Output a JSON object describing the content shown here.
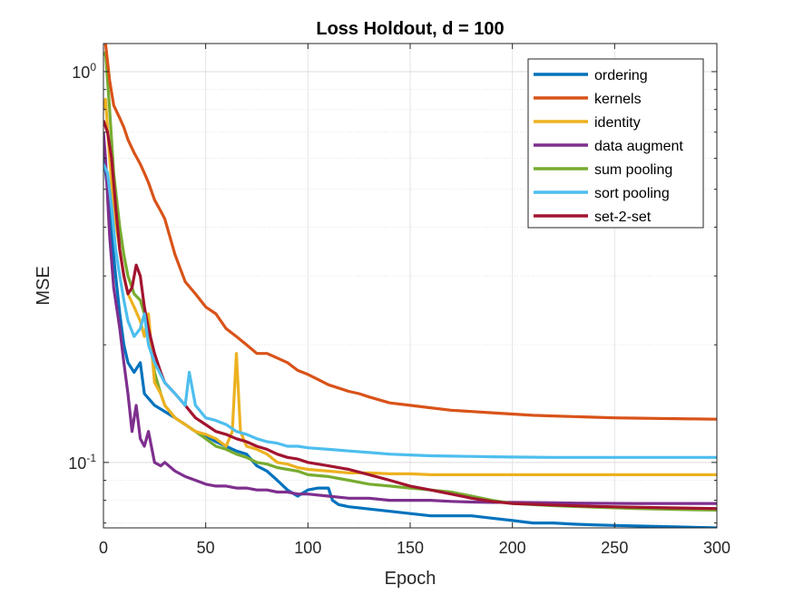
{
  "chart_data": {
    "type": "line",
    "title": "Loss Holdout, d = 100",
    "xlabel": "Epoch",
    "ylabel": "MSE",
    "xlim": [
      0,
      300
    ],
    "ylim": [
      0.068,
      1.18
    ],
    "yscale": "log",
    "grid": true,
    "legend_position": "top-right",
    "x_ticks": [
      {
        "value": 0,
        "label": "0"
      },
      {
        "value": 50,
        "label": "50"
      },
      {
        "value": 100,
        "label": "100"
      },
      {
        "value": 150,
        "label": "150"
      },
      {
        "value": 200,
        "label": "200"
      },
      {
        "value": 250,
        "label": "250"
      },
      {
        "value": 300,
        "label": "300"
      }
    ],
    "y_ticks": [
      {
        "value": 1,
        "base": "10",
        "exp": "0"
      },
      {
        "value": 0.1,
        "base": "10",
        "exp": "-1"
      }
    ],
    "series": [
      {
        "name": "ordering",
        "color": "#0072BD",
        "x": [
          0,
          2,
          4,
          6,
          8,
          10,
          12,
          15,
          18,
          20,
          25,
          30,
          35,
          40,
          45,
          50,
          55,
          60,
          65,
          70,
          75,
          80,
          85,
          90,
          95,
          100,
          105,
          110,
          112,
          115,
          120,
          130,
          140,
          150,
          160,
          170,
          180,
          190,
          200,
          210,
          220,
          230,
          240,
          250,
          260,
          270,
          280,
          290,
          300
        ],
        "y": [
          0.62,
          0.5,
          0.38,
          0.3,
          0.24,
          0.2,
          0.18,
          0.17,
          0.18,
          0.15,
          0.14,
          0.135,
          0.13,
          0.125,
          0.12,
          0.117,
          0.113,
          0.11,
          0.107,
          0.105,
          0.098,
          0.095,
          0.09,
          0.085,
          0.082,
          0.085,
          0.086,
          0.086,
          0.08,
          0.078,
          0.077,
          0.076,
          0.075,
          0.074,
          0.073,
          0.073,
          0.073,
          0.072,
          0.071,
          0.07,
          0.07,
          0.0695,
          0.0692,
          0.069,
          0.0688,
          0.0686,
          0.0684,
          0.0682,
          0.068
        ]
      },
      {
        "name": "kernels",
        "color": "#D95319",
        "x": [
          0,
          1,
          3,
          5,
          8,
          10,
          12,
          15,
          18,
          20,
          22,
          25,
          28,
          30,
          35,
          40,
          45,
          50,
          55,
          60,
          65,
          70,
          75,
          80,
          85,
          90,
          95,
          100,
          105,
          110,
          115,
          120,
          125,
          130,
          140,
          150,
          160,
          170,
          180,
          190,
          200,
          210,
          220,
          230,
          240,
          250,
          260,
          270,
          280,
          290,
          300
        ],
        "y": [
          1.2,
          1.18,
          0.95,
          0.82,
          0.76,
          0.72,
          0.67,
          0.62,
          0.58,
          0.55,
          0.52,
          0.47,
          0.44,
          0.42,
          0.34,
          0.29,
          0.27,
          0.25,
          0.24,
          0.22,
          0.21,
          0.2,
          0.19,
          0.19,
          0.185,
          0.18,
          0.172,
          0.168,
          0.163,
          0.158,
          0.155,
          0.152,
          0.15,
          0.147,
          0.142,
          0.14,
          0.138,
          0.136,
          0.135,
          0.134,
          0.133,
          0.132,
          0.1315,
          0.131,
          0.1305,
          0.13,
          0.1298,
          0.1296,
          0.1294,
          0.1292,
          0.129
        ]
      },
      {
        "name": "identity",
        "color": "#EDB120",
        "x": [
          0,
          1,
          3,
          5,
          8,
          10,
          12,
          15,
          18,
          20,
          22,
          25,
          28,
          30,
          35,
          40,
          45,
          50,
          55,
          60,
          63,
          65,
          67,
          70,
          75,
          80,
          85,
          90,
          95,
          100,
          110,
          120,
          130,
          140,
          150,
          160,
          170,
          180,
          190,
          200,
          220,
          240,
          260,
          280,
          300
        ],
        "y": [
          0.8,
          0.85,
          0.6,
          0.45,
          0.35,
          0.3,
          0.27,
          0.25,
          0.23,
          0.21,
          0.24,
          0.16,
          0.15,
          0.14,
          0.13,
          0.125,
          0.12,
          0.118,
          0.115,
          0.11,
          0.12,
          0.19,
          0.12,
          0.11,
          0.108,
          0.105,
          0.1,
          0.099,
          0.097,
          0.096,
          0.095,
          0.094,
          0.094,
          0.0935,
          0.0935,
          0.093,
          0.093,
          0.093,
          0.093,
          0.093,
          0.093,
          0.093,
          0.093,
          0.093,
          0.093
        ]
      },
      {
        "name": "data augment",
        "color": "#7E2F8E",
        "x": [
          0,
          1,
          3,
          5,
          8,
          10,
          12,
          14,
          16,
          18,
          20,
          22,
          25,
          28,
          30,
          35,
          40,
          45,
          50,
          55,
          60,
          65,
          70,
          75,
          80,
          85,
          90,
          95,
          100,
          110,
          120,
          130,
          140,
          150,
          160,
          170,
          180,
          190,
          200,
          220,
          240,
          260,
          280,
          300
        ],
        "y": [
          0.7,
          0.6,
          0.38,
          0.28,
          0.22,
          0.18,
          0.15,
          0.12,
          0.14,
          0.115,
          0.11,
          0.12,
          0.1,
          0.098,
          0.1,
          0.095,
          0.092,
          0.09,
          0.088,
          0.087,
          0.087,
          0.086,
          0.086,
          0.085,
          0.085,
          0.084,
          0.084,
          0.083,
          0.083,
          0.082,
          0.081,
          0.081,
          0.08,
          0.08,
          0.08,
          0.0795,
          0.0792,
          0.079,
          0.079,
          0.0788,
          0.0786,
          0.0785,
          0.0785,
          0.0785
        ]
      },
      {
        "name": "sum pooling",
        "color": "#77AC30",
        "x": [
          0,
          1,
          3,
          5,
          8,
          10,
          12,
          15,
          18,
          20,
          22,
          25,
          28,
          30,
          35,
          40,
          45,
          50,
          55,
          60,
          65,
          70,
          75,
          80,
          85,
          90,
          95,
          100,
          110,
          120,
          130,
          140,
          150,
          160,
          170,
          180,
          190,
          200,
          220,
          240,
          260,
          280,
          300
        ],
        "y": [
          1.1,
          1.12,
          0.8,
          0.55,
          0.4,
          0.34,
          0.3,
          0.27,
          0.26,
          0.24,
          0.22,
          0.17,
          0.15,
          0.14,
          0.13,
          0.125,
          0.12,
          0.115,
          0.11,
          0.108,
          0.105,
          0.103,
          0.1,
          0.099,
          0.097,
          0.096,
          0.095,
          0.093,
          0.092,
          0.09,
          0.088,
          0.087,
          0.086,
          0.085,
          0.084,
          0.082,
          0.08,
          0.0785,
          0.0775,
          0.0768,
          0.0762,
          0.0758,
          0.0755
        ]
      },
      {
        "name": "sort pooling",
        "color": "#4DBEEE",
        "x": [
          0,
          2,
          4,
          6,
          8,
          10,
          12,
          15,
          18,
          20,
          22,
          25,
          30,
          35,
          40,
          42,
          45,
          50,
          55,
          60,
          65,
          70,
          75,
          80,
          85,
          90,
          95,
          100,
          110,
          120,
          130,
          140,
          150,
          160,
          170,
          180,
          190,
          200,
          220,
          240,
          260,
          280,
          300
        ],
        "y": [
          0.58,
          0.55,
          0.45,
          0.35,
          0.3,
          0.26,
          0.23,
          0.21,
          0.22,
          0.24,
          0.2,
          0.18,
          0.16,
          0.15,
          0.14,
          0.17,
          0.14,
          0.13,
          0.128,
          0.125,
          0.12,
          0.118,
          0.115,
          0.113,
          0.112,
          0.11,
          0.11,
          0.109,
          0.108,
          0.107,
          0.106,
          0.105,
          0.1045,
          0.104,
          0.1038,
          0.1036,
          0.1034,
          0.1032,
          0.103,
          0.103,
          0.103,
          0.103,
          0.103
        ]
      },
      {
        "name": "set-2-set",
        "color": "#A2142F",
        "x": [
          0,
          2,
          4,
          6,
          8,
          10,
          12,
          14,
          16,
          18,
          20,
          22,
          25,
          28,
          30,
          35,
          40,
          45,
          50,
          55,
          60,
          65,
          70,
          75,
          80,
          85,
          90,
          95,
          100,
          110,
          120,
          130,
          140,
          150,
          160,
          170,
          180,
          190,
          200,
          220,
          240,
          260,
          280,
          300
        ],
        "y": [
          0.75,
          0.7,
          0.6,
          0.45,
          0.35,
          0.3,
          0.27,
          0.28,
          0.32,
          0.3,
          0.25,
          0.22,
          0.19,
          0.17,
          0.16,
          0.15,
          0.14,
          0.13,
          0.125,
          0.12,
          0.118,
          0.115,
          0.113,
          0.11,
          0.108,
          0.105,
          0.103,
          0.102,
          0.1,
          0.098,
          0.096,
          0.093,
          0.09,
          0.087,
          0.085,
          0.083,
          0.081,
          0.0795,
          0.0785,
          0.0778,
          0.0772,
          0.0768,
          0.0765,
          0.0762
        ]
      }
    ]
  }
}
